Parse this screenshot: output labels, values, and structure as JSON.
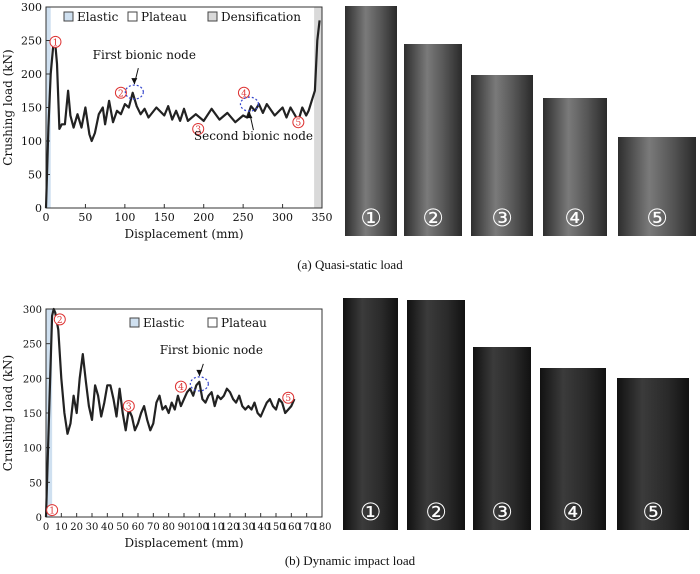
{
  "chart_data": [
    {
      "type": "line",
      "title": "",
      "xlabel": "Displacement (mm)",
      "ylabel": "Crushing load (kN)",
      "xlim": [
        0,
        350
      ],
      "ylim": [
        0,
        300
      ],
      "xticks": [
        "0",
        "50",
        "100",
        "150",
        "200",
        "250",
        "300",
        "350"
      ],
      "yticks": [
        "0",
        "50",
        "100",
        "150",
        "200",
        "250",
        "300"
      ],
      "legend": [
        "Elastic",
        "Plateau",
        "Densification"
      ],
      "legend_placement": "top",
      "regions": [
        {
          "name": "Elastic",
          "from": 0,
          "to": 6,
          "color": "#cfe0f0"
        },
        {
          "name": "Densification",
          "from": 340,
          "to": 350,
          "color": "#d9d9d9"
        }
      ],
      "series": [
        {
          "color": "#222222",
          "x": [
            0,
            3,
            6,
            9,
            11,
            14,
            17,
            20,
            24,
            28,
            31,
            35,
            40,
            45,
            50,
            55,
            58,
            62,
            67,
            72,
            75,
            80,
            85,
            90,
            95,
            100,
            105,
            110,
            115,
            120,
            125,
            130,
            140,
            150,
            155,
            160,
            165,
            170,
            175,
            180,
            190,
            200,
            210,
            220,
            230,
            240,
            250,
            255,
            260,
            265,
            270,
            275,
            280,
            290,
            300,
            305,
            310,
            315,
            320,
            325,
            330,
            333,
            337,
            341,
            344,
            347
          ],
          "y": [
            0,
            120,
            200,
            240,
            255,
            215,
            118,
            125,
            125,
            175,
            138,
            120,
            140,
            120,
            150,
            110,
            100,
            112,
            140,
            150,
            125,
            160,
            128,
            145,
            140,
            155,
            150,
            172,
            152,
            140,
            148,
            135,
            150,
            138,
            152,
            132,
            145,
            130,
            148,
            130,
            140,
            130,
            148,
            132,
            142,
            128,
            138,
            135,
            152,
            145,
            155,
            142,
            155,
            138,
            150,
            135,
            150,
            140,
            130,
            150,
            138,
            145,
            160,
            175,
            250,
            280
          ]
        }
      ],
      "annotations": [
        {
          "label": "1",
          "x": 12,
          "y": 248
        },
        {
          "label": "2",
          "x": 95,
          "y": 172
        },
        {
          "label": "3",
          "x": 193,
          "y": 118
        },
        {
          "label": "4",
          "x": 251,
          "y": 172
        },
        {
          "label": "5",
          "x": 320,
          "y": 128
        },
        {
          "label": "First bionic node",
          "x": 112,
          "y": 173
        },
        {
          "label": "Second bionic node",
          "x": 258,
          "y": 155
        }
      ]
    },
    {
      "type": "line",
      "title": "",
      "xlabel": "Displacement (mm)",
      "ylabel": "Crushing load (kN)",
      "xlim": [
        0,
        180
      ],
      "ylim": [
        0,
        300
      ],
      "xticks": [
        "0",
        "10",
        "20",
        "30",
        "40",
        "50",
        "60",
        "70",
        "80",
        "90",
        "100",
        "110",
        "120",
        "130",
        "140",
        "150",
        "160",
        "170",
        "180"
      ],
      "yticks": [
        "0",
        "50",
        "100",
        "150",
        "200",
        "250",
        "300"
      ],
      "legend": [
        "Elastic",
        "Plateau"
      ],
      "legend_placement": "top-right",
      "regions": [
        {
          "name": "Elastic",
          "from": 0,
          "to": 4,
          "color": "#cfe0f0"
        }
      ],
      "series": [
        {
          "color": "#222222",
          "x": [
            0,
            2,
            4,
            5,
            6,
            8,
            10,
            12,
            14,
            16,
            18,
            20,
            22,
            24,
            26,
            28,
            30,
            32,
            34,
            36,
            38,
            40,
            42,
            44,
            46,
            48,
            50,
            52,
            54,
            56,
            58,
            60,
            62,
            64,
            66,
            68,
            70,
            72,
            74,
            76,
            78,
            80,
            82,
            84,
            86,
            88,
            90,
            92,
            94,
            96,
            98,
            100,
            102,
            104,
            106,
            108,
            110,
            112,
            114,
            116,
            118,
            120,
            122,
            124,
            126,
            128,
            130,
            132,
            134,
            136,
            138,
            140,
            142,
            144,
            146,
            148,
            150,
            152,
            154,
            156,
            158,
            160,
            162
          ],
          "y": [
            0,
            150,
            290,
            300,
            295,
            270,
            200,
            150,
            120,
            135,
            175,
            150,
            200,
            235,
            195,
            160,
            140,
            190,
            175,
            145,
            165,
            190,
            190,
            170,
            145,
            185,
            150,
            125,
            155,
            145,
            125,
            135,
            150,
            160,
            140,
            125,
            135,
            165,
            175,
            155,
            160,
            150,
            165,
            155,
            175,
            160,
            170,
            180,
            185,
            175,
            190,
            195,
            170,
            165,
            175,
            180,
            160,
            175,
            170,
            175,
            185,
            180,
            170,
            165,
            175,
            160,
            155,
            160,
            155,
            165,
            150,
            145,
            155,
            165,
            170,
            160,
            155,
            170,
            165,
            150,
            155,
            160,
            170
          ]
        }
      ],
      "annotations": [
        {
          "label": "1",
          "x": 4,
          "y": 10
        },
        {
          "label": "2",
          "x": 9,
          "y": 285
        },
        {
          "label": "3",
          "x": 54,
          "y": 160
        },
        {
          "label": "4",
          "x": 88,
          "y": 188
        },
        {
          "label": "5",
          "x": 158,
          "y": 172
        },
        {
          "label": "First bionic node",
          "x": 100,
          "y": 192
        }
      ]
    }
  ],
  "photos_top": [
    "①",
    "②",
    "③",
    "④",
    "⑤"
  ],
  "photos_bottom": [
    "①",
    "②",
    "③",
    "④",
    "⑤"
  ],
  "captions": {
    "top": "(a) Quasi-static load",
    "bottom": "(b) Dynamic impact load"
  }
}
